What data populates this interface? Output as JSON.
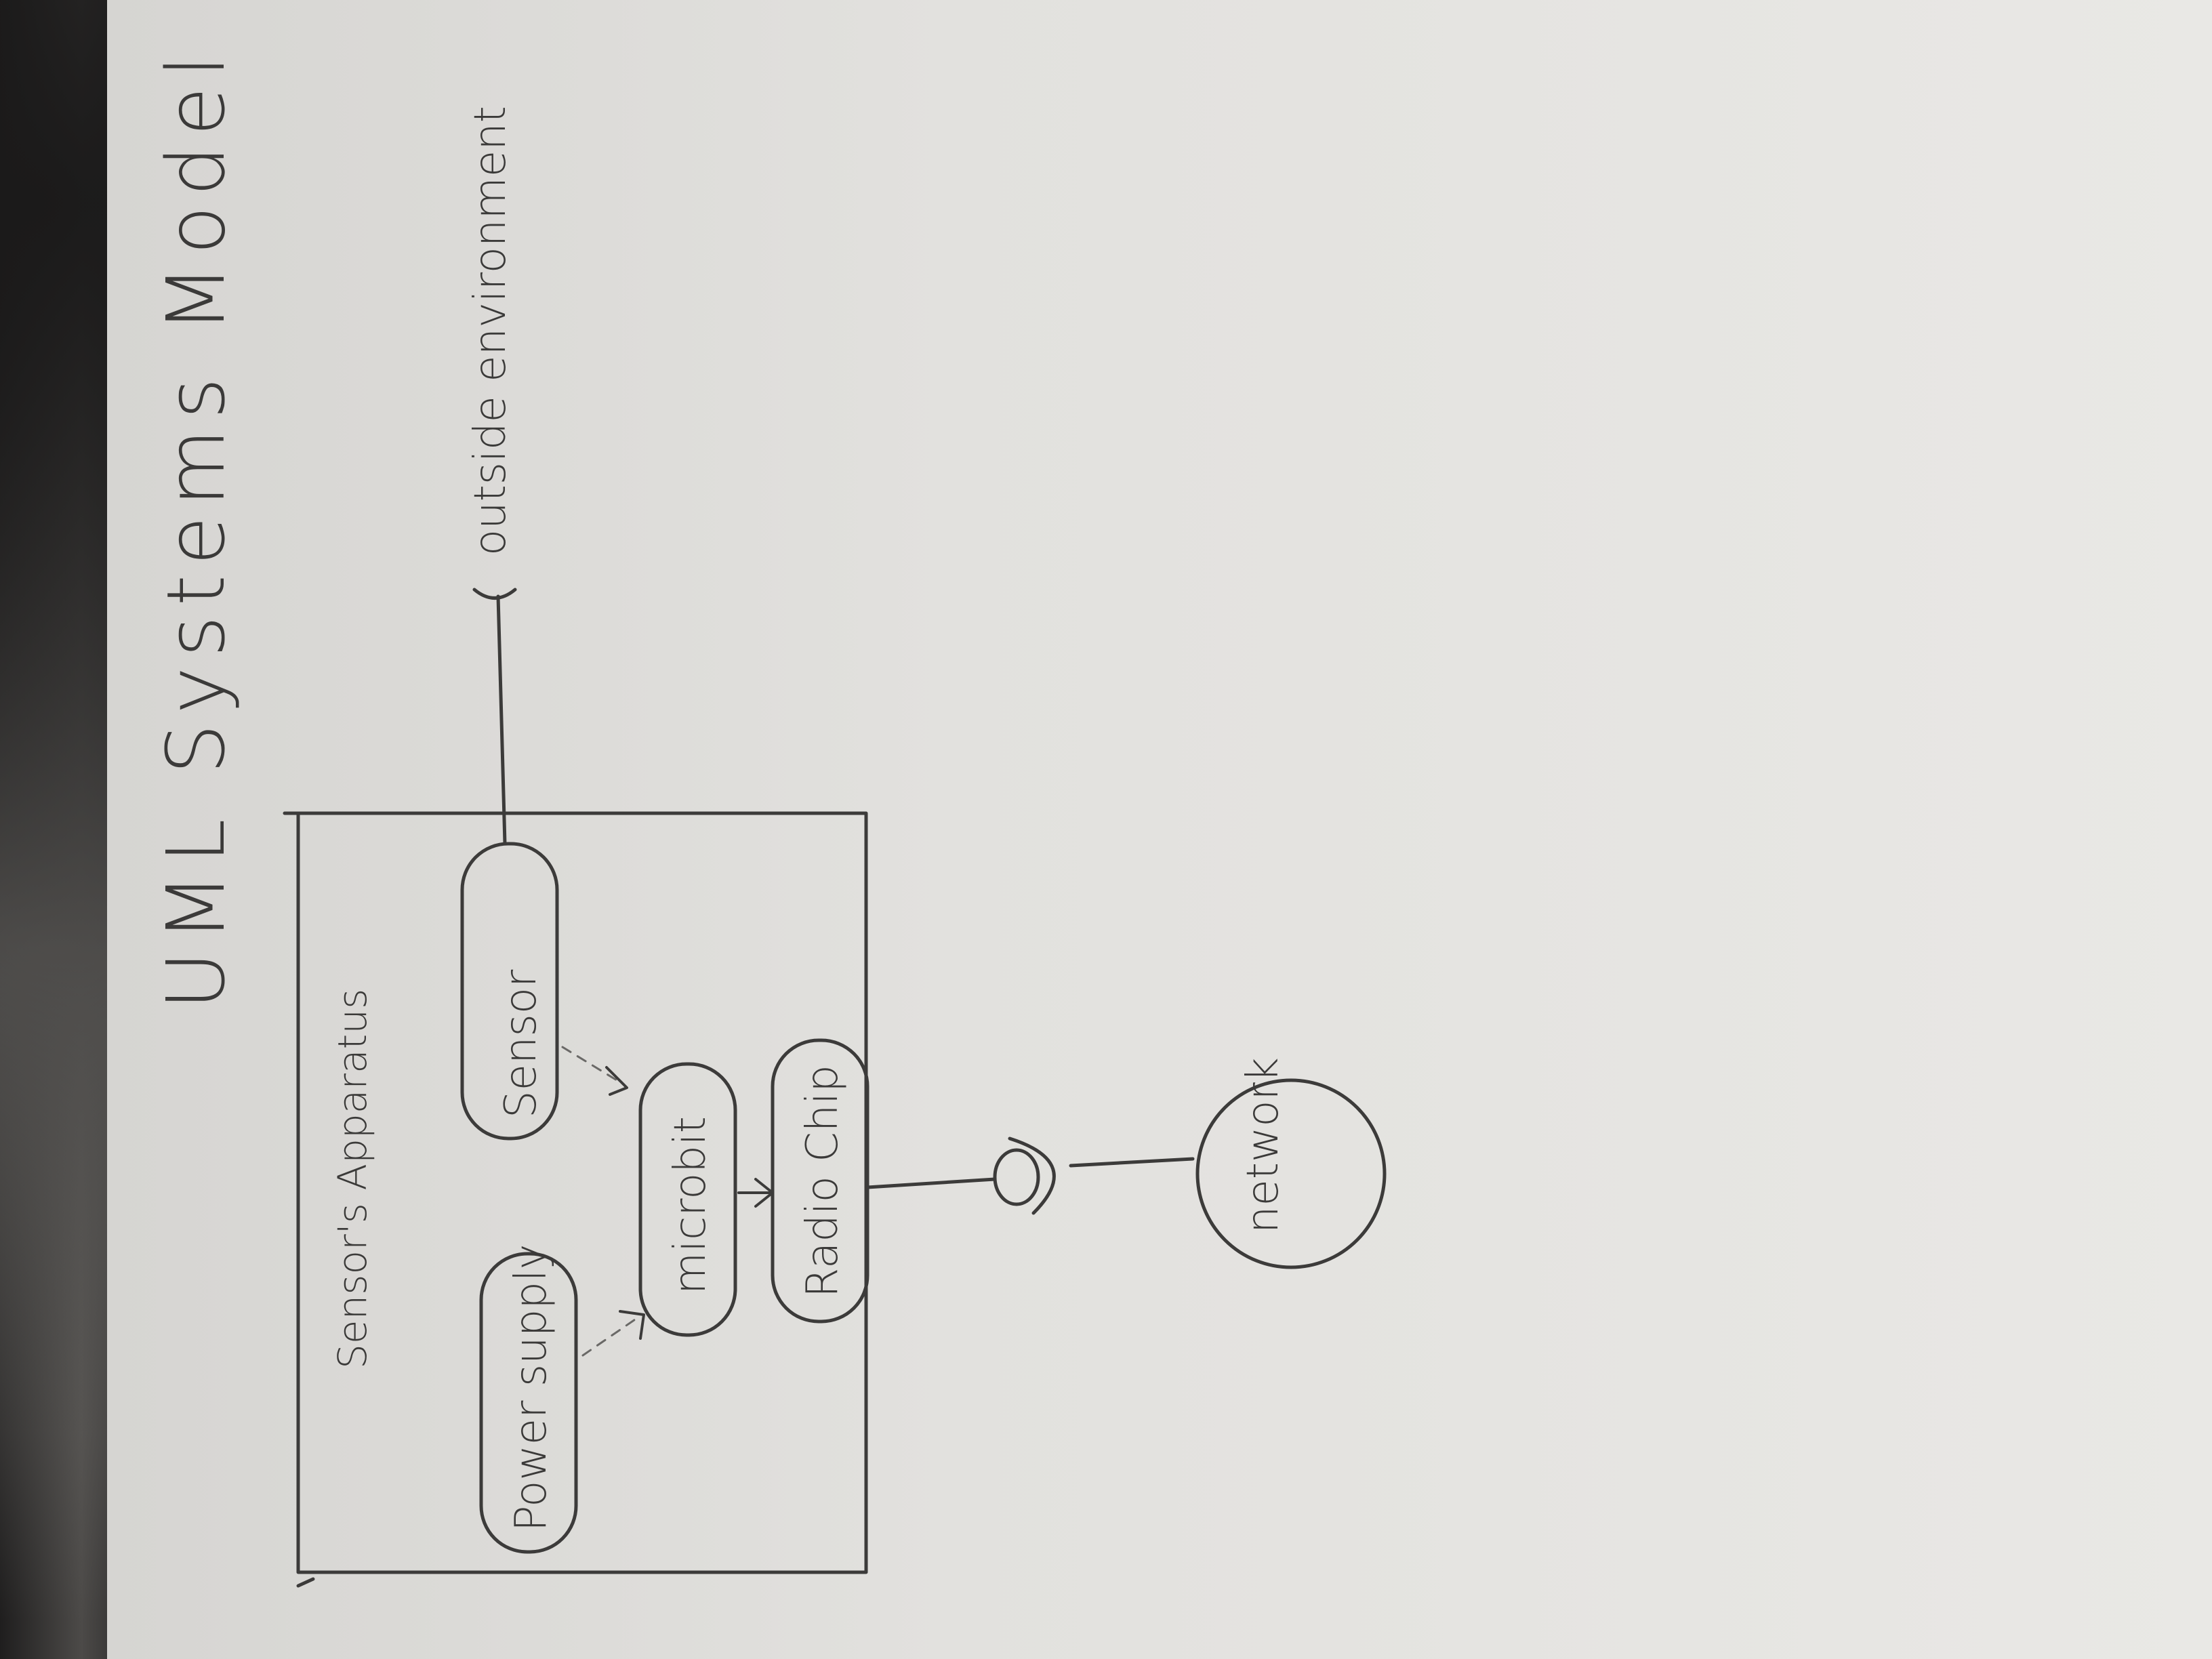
{
  "title": "UML Systems Model",
  "container": {
    "label": "Sensor's Apparatus"
  },
  "components": {
    "power_supply": "Power supply",
    "sensor": "Sensor",
    "microbit": "microbit",
    "radio_chip": "Radio Chip"
  },
  "external": {
    "outside_environment": "outside environment",
    "network": "network"
  },
  "colors": {
    "paper": "#e5e4e1",
    "pencil": "#3c3b3a",
    "background": "#3a3838"
  }
}
